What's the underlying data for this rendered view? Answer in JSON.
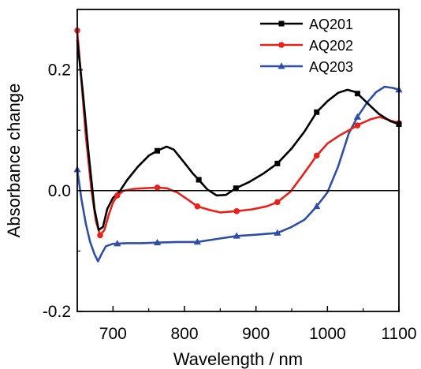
{
  "chart_data": {
    "type": "line",
    "xlabel": "Wavelength / nm",
    "ylabel": "Absorbance change",
    "xlim": [
      650,
      1100
    ],
    "ylim": [
      -0.2,
      0.3
    ],
    "xticks": [
      700,
      800,
      900,
      1000,
      1100
    ],
    "yticks": [
      -0.2,
      0.0,
      0.2
    ],
    "ytick_labels": [
      "-0.2",
      "0.0",
      "0.2"
    ],
    "reference_line_y": 0.0,
    "legend_position": "top-right",
    "grid": false,
    "series": [
      {
        "name": "AQ201",
        "color": "#000000",
        "marker": "square",
        "points": [
          [
            650,
            0.25
          ],
          [
            658,
            0.16
          ],
          [
            666,
            0.06
          ],
          [
            674,
            -0.03
          ],
          [
            680,
            -0.065
          ],
          [
            686,
            -0.06
          ],
          [
            692,
            -0.03
          ],
          [
            700,
            -0.012
          ],
          [
            710,
            0.0
          ],
          [
            720,
            0.018
          ],
          [
            735,
            0.04
          ],
          [
            750,
            0.058
          ],
          [
            762,
            0.066
          ],
          [
            775,
            0.073
          ],
          [
            785,
            0.068
          ],
          [
            800,
            0.046
          ],
          [
            812,
            0.028
          ],
          [
            820,
            0.018
          ],
          [
            832,
            0.002
          ],
          [
            845,
            -0.008
          ],
          [
            858,
            -0.007
          ],
          [
            872,
            0.004
          ],
          [
            890,
            0.014
          ],
          [
            910,
            0.028
          ],
          [
            930,
            0.045
          ],
          [
            950,
            0.07
          ],
          [
            968,
            0.098
          ],
          [
            985,
            0.13
          ],
          [
            1000,
            0.148
          ],
          [
            1015,
            0.162
          ],
          [
            1028,
            0.167
          ],
          [
            1040,
            0.163
          ],
          [
            1055,
            0.146
          ],
          [
            1072,
            0.127
          ],
          [
            1088,
            0.115
          ],
          [
            1100,
            0.11
          ]
        ],
        "markers_x": [
          762,
          820,
          872,
          930,
          985,
          1042,
          1100
        ]
      },
      {
        "name": "AQ202",
        "color": "#e8211b",
        "marker": "circle",
        "points": [
          [
            650,
            0.265
          ],
          [
            656,
            0.18
          ],
          [
            662,
            0.09
          ],
          [
            670,
            0.0
          ],
          [
            676,
            -0.05
          ],
          [
            682,
            -0.074
          ],
          [
            688,
            -0.065
          ],
          [
            694,
            -0.04
          ],
          [
            700,
            -0.02
          ],
          [
            706,
            -0.008
          ],
          [
            715,
            0.0
          ],
          [
            730,
            0.003
          ],
          [
            745,
            0.004
          ],
          [
            762,
            0.005
          ],
          [
            775,
            0.004
          ],
          [
            790,
            -0.003
          ],
          [
            805,
            -0.015
          ],
          [
            818,
            -0.026
          ],
          [
            835,
            -0.032
          ],
          [
            850,
            -0.036
          ],
          [
            873,
            -0.034
          ],
          [
            895,
            -0.031
          ],
          [
            915,
            -0.026
          ],
          [
            930,
            -0.019
          ],
          [
            948,
            -0.002
          ],
          [
            965,
            0.025
          ],
          [
            985,
            0.058
          ],
          [
            1000,
            0.078
          ],
          [
            1015,
            0.09
          ],
          [
            1030,
            0.1
          ],
          [
            1045,
            0.11
          ],
          [
            1060,
            0.118
          ],
          [
            1073,
            0.122
          ],
          [
            1086,
            0.117
          ],
          [
            1100,
            0.112
          ]
        ],
        "markers_x": [
          650,
          682,
          706,
          762,
          818,
          873,
          930,
          985,
          1042,
          1100
        ]
      },
      {
        "name": "AQ203",
        "color": "#2f4ea6",
        "marker": "triangle",
        "points": [
          [
            650,
            0.035
          ],
          [
            656,
            -0.015
          ],
          [
            662,
            -0.055
          ],
          [
            668,
            -0.085
          ],
          [
            674,
            -0.105
          ],
          [
            679,
            -0.117
          ],
          [
            684,
            -0.105
          ],
          [
            690,
            -0.092
          ],
          [
            700,
            -0.088
          ],
          [
            720,
            -0.087
          ],
          [
            740,
            -0.087
          ],
          [
            762,
            -0.086
          ],
          [
            790,
            -0.085
          ],
          [
            818,
            -0.085
          ],
          [
            845,
            -0.08
          ],
          [
            873,
            -0.075
          ],
          [
            900,
            -0.073
          ],
          [
            930,
            -0.07
          ],
          [
            950,
            -0.06
          ],
          [
            968,
            -0.048
          ],
          [
            985,
            -0.026
          ],
          [
            1000,
            -0.003
          ],
          [
            1015,
            0.04
          ],
          [
            1030,
            0.095
          ],
          [
            1042,
            0.122
          ],
          [
            1055,
            0.145
          ],
          [
            1068,
            0.163
          ],
          [
            1080,
            0.172
          ],
          [
            1092,
            0.17
          ],
          [
            1100,
            0.167
          ]
        ],
        "markers_x": [
          650,
          706,
          762,
          818,
          873,
          930,
          985,
          1042,
          1100
        ]
      }
    ]
  }
}
